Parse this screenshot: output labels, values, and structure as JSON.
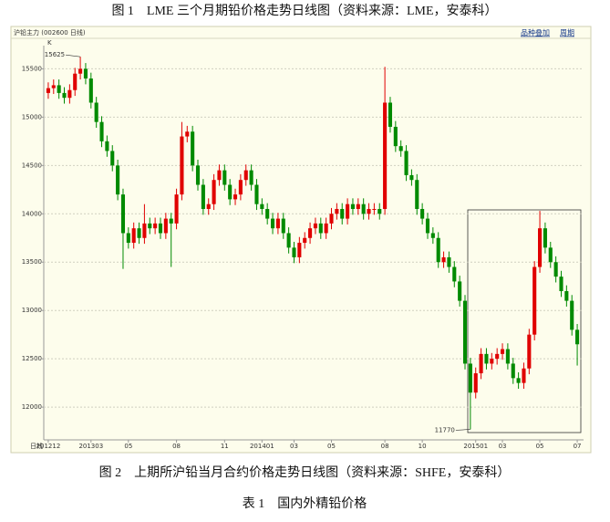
{
  "caption_top": "图 1　LME 三个月期铅价格走势日线图（资料来源：LME，安泰科）",
  "caption_bottom": "图 2　上期所沪铅当月合约价格走势日线图（资料来源：SHFE，安泰科）",
  "table_caption": "表 1　国内外精铅价格",
  "chart_data": {
    "type": "candlestick",
    "title": "沪铅主力 (002600 日线)",
    "toolbar": [
      "品种叠加",
      "周期"
    ],
    "y_axis_label": "K",
    "x_axis_label": "日线",
    "up_color": "#e00000",
    "down_color": "#008a00",
    "grid": true,
    "ylim": [
      11680,
      15740
    ],
    "yticks": [
      12000,
      12500,
      13000,
      13500,
      14000,
      14500,
      15000,
      15500
    ],
    "categories": [
      "201212",
      null,
      null,
      null,
      null,
      null,
      null,
      null,
      "201303",
      null,
      null,
      null,
      null,
      null,
      null,
      "05",
      null,
      null,
      null,
      null,
      null,
      null,
      null,
      null,
      "08",
      null,
      null,
      null,
      null,
      null,
      null,
      null,
      null,
      "11",
      null,
      null,
      null,
      null,
      null,
      null,
      "201401",
      null,
      null,
      null,
      null,
      null,
      "03",
      null,
      null,
      null,
      null,
      null,
      null,
      "05",
      null,
      null,
      null,
      null,
      null,
      null,
      null,
      null,
      null,
      "08",
      null,
      null,
      null,
      null,
      null,
      null,
      "10",
      null,
      null,
      null,
      null,
      null,
      null,
      null,
      null,
      null,
      "201501",
      null,
      null,
      null,
      null,
      "03",
      null,
      null,
      null,
      null,
      null,
      null,
      "05",
      null,
      null,
      null,
      null,
      null,
      null,
      "07"
    ],
    "open": [
      15250,
      15300,
      15330,
      15250,
      15200,
      15280,
      15450,
      15500,
      15400,
      15150,
      14950,
      14750,
      14650,
      14500,
      14200,
      13800,
      13700,
      13850,
      13750,
      13900,
      13850,
      13900,
      13800,
      13950,
      13900,
      14200,
      14800,
      14850,
      14500,
      14300,
      14050,
      14100,
      14350,
      14450,
      14300,
      14150,
      14200,
      14350,
      14450,
      14300,
      14100,
      14050,
      13950,
      13850,
      13950,
      13800,
      13650,
      13550,
      13700,
      13750,
      13850,
      13900,
      13800,
      13900,
      14000,
      14050,
      13950,
      14100,
      14050,
      14100,
      14000,
      14050,
      14050,
      14050,
      15150,
      14900,
      14700,
      14650,
      14400,
      14350,
      14050,
      13950,
      13800,
      13750,
      13500,
      13550,
      13450,
      13300,
      13100,
      12450,
      12150,
      12350,
      12550,
      12450,
      12500,
      12550,
      12600,
      12450,
      12300,
      12250,
      12400,
      12750,
      13450,
      13850,
      13650,
      13500,
      13350,
      13200,
      13100,
      12800
    ],
    "high": [
      15360,
      15390,
      15390,
      15310,
      15340,
      15510,
      15625,
      15560,
      15460,
      15210,
      15010,
      14810,
      14710,
      14560,
      14260,
      13860,
      13910,
      13910,
      14100,
      13960,
      13960,
      13960,
      14010,
      14010,
      14260,
      14950,
      14910,
      14910,
      14560,
      14360,
      14160,
      14410,
      14510,
      14510,
      14360,
      14260,
      14410,
      14510,
      14510,
      14360,
      14160,
      14110,
      14010,
      14010,
      14010,
      13860,
      13710,
      13760,
      13810,
      13910,
      13960,
      13960,
      13960,
      14060,
      14110,
      14110,
      14160,
      14160,
      14160,
      14160,
      14110,
      14110,
      14110,
      15520,
      15210,
      14960,
      14760,
      14710,
      14460,
      14410,
      14110,
      14010,
      13860,
      13810,
      13610,
      13610,
      13510,
      13360,
      13160,
      12510,
      12410,
      12610,
      12610,
      12560,
      12610,
      12660,
      12660,
      12510,
      12360,
      12460,
      12810,
      13510,
      14030,
      13910,
      13710,
      13560,
      13410,
      13260,
      13160,
      12860
    ],
    "low": [
      15190,
      15240,
      15190,
      15140,
      15140,
      15220,
      15390,
      15340,
      15090,
      14890,
      14690,
      14590,
      14440,
      14140,
      13430,
      13640,
      13640,
      13690,
      13690,
      13790,
      13790,
      13740,
      13740,
      13450,
      13840,
      14140,
      14740,
      14440,
      14240,
      13990,
      13990,
      14040,
      14290,
      14240,
      14090,
      14090,
      14140,
      14290,
      14240,
      14040,
      13990,
      13890,
      13790,
      13790,
      13740,
      13590,
      13490,
      13490,
      13640,
      13690,
      13790,
      13740,
      13740,
      13840,
      13940,
      13890,
      13890,
      13990,
      13990,
      13940,
      13940,
      13990,
      13940,
      13990,
      14840,
      14640,
      14590,
      14340,
      14290,
      13990,
      13890,
      13740,
      13690,
      13440,
      13440,
      13390,
      13240,
      13040,
      12390,
      11770,
      12090,
      12290,
      12390,
      12390,
      12440,
      12490,
      12390,
      12240,
      12190,
      12190,
      12340,
      12690,
      13390,
      13590,
      13440,
      13290,
      13140,
      13040,
      12740,
      12430
    ],
    "close": [
      15300,
      15330,
      15250,
      15200,
      15280,
      15450,
      15500,
      15400,
      15150,
      14950,
      14750,
      14650,
      14500,
      14200,
      13800,
      13700,
      13850,
      13750,
      13900,
      13850,
      13900,
      13800,
      13950,
      13900,
      14200,
      14800,
      14850,
      14500,
      14300,
      14050,
      14100,
      14350,
      14450,
      14300,
      14150,
      14200,
      14350,
      14450,
      14300,
      14100,
      14050,
      13950,
      13850,
      13950,
      13800,
      13650,
      13550,
      13700,
      13750,
      13850,
      13900,
      13800,
      13900,
      14000,
      14050,
      13950,
      14100,
      14050,
      14100,
      14000,
      14050,
      14050,
      14000,
      15150,
      14900,
      14700,
      14650,
      14400,
      14350,
      14050,
      13950,
      13800,
      13750,
      13500,
      13550,
      13450,
      13300,
      13100,
      12450,
      12150,
      12350,
      12550,
      12450,
      12500,
      12550,
      12600,
      12450,
      12300,
      12250,
      12400,
      12750,
      13450,
      13850,
      13650,
      13500,
      13350,
      13200,
      13100,
      12800,
      12650
    ],
    "annotations": [
      {
        "path": "high",
        "index": 6
      },
      {
        "path": "low",
        "index": 79
      }
    ]
  }
}
